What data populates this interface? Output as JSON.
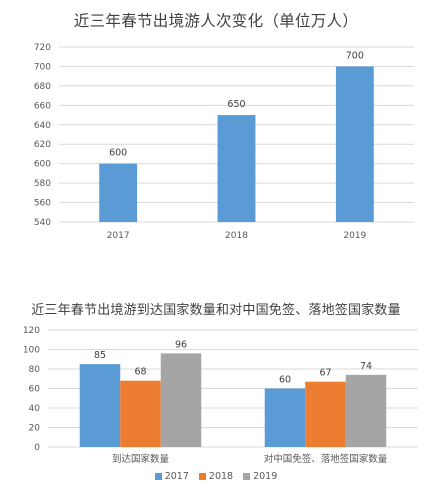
{
  "chart_data": [
    {
      "type": "bar",
      "title": "近三年春节出境游人次变化（单位万人）",
      "categories": [
        "2017",
        "2018",
        "2019"
      ],
      "values": [
        600,
        650,
        700
      ],
      "color": "#5B9BD5",
      "ylim": [
        540,
        720
      ],
      "yticks": [
        540,
        560,
        580,
        600,
        620,
        640,
        660,
        680,
        700,
        720
      ],
      "grid": true,
      "xlabel": "",
      "ylabel": ""
    },
    {
      "type": "bar",
      "title": "近三年春节出境游到达国家数量和对中国免签、落地签国家数量",
      "categories": [
        "到达国家数量",
        "对中国免签、落地签国家数量"
      ],
      "series": [
        {
          "name": "2017",
          "values": [
            85,
            60
          ],
          "color": "#5B9BD5"
        },
        {
          "name": "2018",
          "values": [
            68,
            67
          ],
          "color": "#ED7D31"
        },
        {
          "name": "2019",
          "values": [
            96,
            74
          ],
          "color": "#A5A5A5"
        }
      ],
      "ylim": [
        0,
        120
      ],
      "yticks": [
        0,
        20,
        40,
        60,
        80,
        100,
        120
      ],
      "grid": true,
      "legend": "bottom",
      "xlabel": "",
      "ylabel": ""
    }
  ]
}
